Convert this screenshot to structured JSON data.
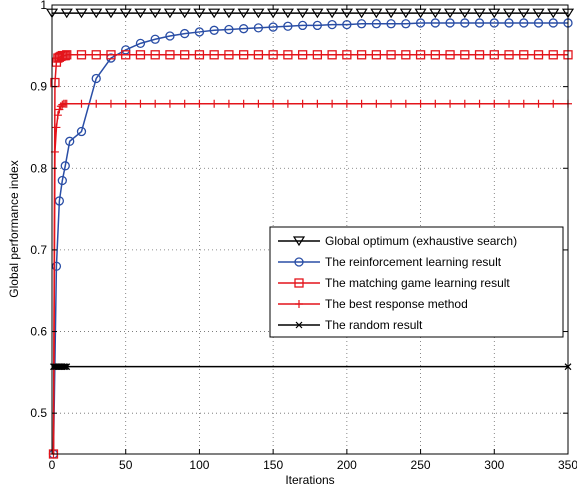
{
  "chart_data": {
    "type": "line",
    "xlabel": "Iterations",
    "ylabel": "Global performance index",
    "xlim": [
      0,
      350
    ],
    "ylim": [
      0.45,
      1.0
    ],
    "x_ticks": [
      0,
      50,
      100,
      150,
      200,
      250,
      300,
      350
    ],
    "y_ticks": [
      0.5,
      0.6,
      0.7,
      0.8,
      0.9,
      1
    ],
    "y_tick_labels": [
      "0.5",
      "0.6",
      "0.7",
      "0.8",
      "0.9",
      "1"
    ],
    "grid": true,
    "legend_position": "right",
    "series": [
      {
        "name": "Global optimum (exhaustive search)",
        "color": "#000000",
        "marker": "triangle-down",
        "x": [
          0,
          10,
          20,
          30,
          40,
          50,
          60,
          70,
          80,
          90,
          100,
          110,
          120,
          130,
          140,
          150,
          160,
          170,
          180,
          190,
          200,
          210,
          220,
          230,
          240,
          250,
          260,
          270,
          280,
          290,
          300,
          310,
          320,
          330,
          340,
          350
        ],
        "values": [
          0.99,
          0.99,
          0.99,
          0.99,
          0.99,
          0.99,
          0.99,
          0.99,
          0.99,
          0.99,
          0.99,
          0.99,
          0.99,
          0.99,
          0.99,
          0.99,
          0.99,
          0.99,
          0.99,
          0.99,
          0.99,
          0.99,
          0.99,
          0.99,
          0.99,
          0.99,
          0.99,
          0.99,
          0.99,
          0.99,
          0.99,
          0.99,
          0.99,
          0.99,
          0.99,
          0.99
        ]
      },
      {
        "name": "The reinforcement learning result",
        "color": "#2a4ea6",
        "marker": "circle",
        "x": [
          1,
          3,
          5,
          7,
          9,
          12,
          20,
          30,
          40,
          50,
          60,
          70,
          80,
          90,
          100,
          110,
          120,
          130,
          140,
          150,
          160,
          170,
          180,
          190,
          200,
          210,
          220,
          230,
          240,
          250,
          260,
          270,
          280,
          290,
          300,
          310,
          320,
          330,
          340,
          350
        ],
        "values": [
          0.45,
          0.68,
          0.76,
          0.785,
          0.803,
          0.833,
          0.845,
          0.91,
          0.935,
          0.945,
          0.953,
          0.958,
          0.962,
          0.965,
          0.967,
          0.969,
          0.97,
          0.971,
          0.972,
          0.973,
          0.974,
          0.975,
          0.975,
          0.976,
          0.976,
          0.977,
          0.977,
          0.977,
          0.977,
          0.978,
          0.978,
          0.978,
          0.978,
          0.978,
          0.978,
          0.978,
          0.978,
          0.978,
          0.978,
          0.978
        ]
      },
      {
        "name": "The matching game learning result",
        "color": "#e3141b",
        "marker": "square",
        "x": [
          1,
          2,
          3,
          4,
          5,
          6,
          7,
          8,
          9,
          10,
          20,
          30,
          40,
          50,
          60,
          70,
          80,
          90,
          100,
          110,
          120,
          130,
          140,
          150,
          160,
          170,
          180,
          190,
          200,
          210,
          220,
          230,
          240,
          250,
          260,
          270,
          280,
          290,
          300,
          310,
          320,
          330,
          340,
          350
        ],
        "values": [
          0.45,
          0.905,
          0.93,
          0.935,
          0.936,
          0.937,
          0.938,
          0.938,
          0.938,
          0.939,
          0.939,
          0.939,
          0.939,
          0.939,
          0.939,
          0.939,
          0.939,
          0.939,
          0.939,
          0.939,
          0.939,
          0.939,
          0.939,
          0.939,
          0.939,
          0.939,
          0.939,
          0.939,
          0.939,
          0.939,
          0.939,
          0.939,
          0.939,
          0.939,
          0.939,
          0.939,
          0.939,
          0.939,
          0.939,
          0.939,
          0.939,
          0.939,
          0.939,
          0.939
        ]
      },
      {
        "name": "The best response method",
        "color": "#e3141b",
        "marker": "plus",
        "x": [
          1,
          2,
          3,
          4,
          5,
          6,
          7,
          8,
          9,
          10,
          20,
          30,
          40,
          50,
          60,
          70,
          80,
          90,
          100,
          110,
          120,
          130,
          140,
          150,
          160,
          170,
          180,
          190,
          200,
          210,
          220,
          230,
          240,
          250,
          260,
          270,
          280,
          290,
          300,
          310,
          320,
          330,
          340,
          350
        ],
        "values": [
          0.45,
          0.82,
          0.85,
          0.865,
          0.872,
          0.876,
          0.878,
          0.879,
          0.879,
          0.879,
          0.879,
          0.879,
          0.879,
          0.879,
          0.879,
          0.879,
          0.879,
          0.879,
          0.879,
          0.879,
          0.879,
          0.879,
          0.879,
          0.879,
          0.879,
          0.879,
          0.879,
          0.879,
          0.879,
          0.879,
          0.879,
          0.879,
          0.879,
          0.879,
          0.879,
          0.879,
          0.879,
          0.879,
          0.879,
          0.879,
          0.879,
          0.879,
          0.879,
          0.879
        ]
      },
      {
        "name": "The random result",
        "color": "#000000",
        "marker": "x",
        "x": [
          1,
          2,
          3,
          4,
          5,
          6,
          7,
          8,
          9,
          10,
          350
        ],
        "values": [
          0.557,
          0.557,
          0.557,
          0.557,
          0.557,
          0.557,
          0.557,
          0.557,
          0.557,
          0.557,
          0.557
        ]
      }
    ]
  }
}
